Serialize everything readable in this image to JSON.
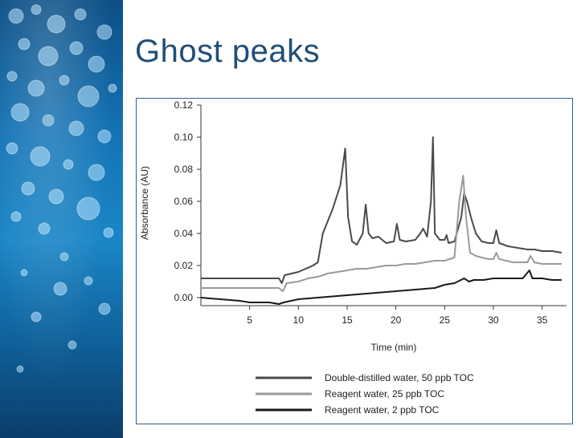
{
  "slide": {
    "title": "Ghost peaks"
  },
  "chart_data": {
    "type": "line",
    "xlabel": "Time (min)",
    "ylabel": "Absorbance (AU)",
    "xlim": [
      0,
      37.5
    ],
    "ylim": [
      -0.005,
      0.12
    ],
    "x_ticks": [
      5,
      10,
      15,
      20,
      25,
      30,
      35
    ],
    "y_ticks": [
      0.0,
      0.02,
      0.04,
      0.06,
      0.08,
      0.1,
      0.12
    ],
    "y_tick_labels": [
      "0.00",
      "0.02",
      "0.04",
      "0.06",
      "0.08",
      "0.10",
      "0.12"
    ],
    "legend_position": "bottom",
    "series": [
      {
        "name": "Double-distilled water, 50 ppb TOC",
        "color": "#4a4a4a",
        "points": [
          [
            0,
            0.012
          ],
          [
            8,
            0.012
          ],
          [
            8.3,
            0.009
          ],
          [
            8.6,
            0.014
          ],
          [
            10,
            0.016
          ],
          [
            11.5,
            0.02
          ],
          [
            12,
            0.022
          ],
          [
            12.5,
            0.04
          ],
          [
            13.5,
            0.055
          ],
          [
            14.3,
            0.07
          ],
          [
            14.8,
            0.093
          ],
          [
            15.1,
            0.05
          ],
          [
            15.5,
            0.035
          ],
          [
            16,
            0.033
          ],
          [
            16.6,
            0.04
          ],
          [
            16.9,
            0.058
          ],
          [
            17.2,
            0.04
          ],
          [
            17.6,
            0.037
          ],
          [
            18.2,
            0.038
          ],
          [
            19,
            0.034
          ],
          [
            19.8,
            0.035
          ],
          [
            20.1,
            0.046
          ],
          [
            20.4,
            0.036
          ],
          [
            21,
            0.035
          ],
          [
            22,
            0.036
          ],
          [
            22.5,
            0.04
          ],
          [
            22.8,
            0.043
          ],
          [
            23.2,
            0.038
          ],
          [
            23.6,
            0.06
          ],
          [
            23.8,
            0.1
          ],
          [
            24,
            0.04
          ],
          [
            24.5,
            0.036
          ],
          [
            25,
            0.036
          ],
          [
            25.2,
            0.039
          ],
          [
            25.4,
            0.034
          ],
          [
            26,
            0.035
          ],
          [
            26.7,
            0.05
          ],
          [
            27,
            0.065
          ],
          [
            27.3,
            0.06
          ],
          [
            27.7,
            0.05
          ],
          [
            28.2,
            0.04
          ],
          [
            28.8,
            0.035
          ],
          [
            29.5,
            0.034
          ],
          [
            30,
            0.034
          ],
          [
            30.3,
            0.042
          ],
          [
            30.6,
            0.034
          ],
          [
            31.5,
            0.032
          ],
          [
            32.5,
            0.031
          ],
          [
            33.5,
            0.03
          ],
          [
            34.2,
            0.03
          ],
          [
            35,
            0.029
          ],
          [
            36,
            0.029
          ],
          [
            37,
            0.028
          ]
        ]
      },
      {
        "name": "Reagent water, 25 ppb TOC",
        "color": "#9a9a9a",
        "points": [
          [
            0,
            0.006
          ],
          [
            8,
            0.006
          ],
          [
            8.4,
            0.004
          ],
          [
            8.8,
            0.009
          ],
          [
            10,
            0.01
          ],
          [
            11,
            0.012
          ],
          [
            12,
            0.013
          ],
          [
            13,
            0.015
          ],
          [
            14,
            0.016
          ],
          [
            15,
            0.017
          ],
          [
            16,
            0.018
          ],
          [
            17,
            0.018
          ],
          [
            18,
            0.019
          ],
          [
            19,
            0.02
          ],
          [
            20,
            0.02
          ],
          [
            21,
            0.021
          ],
          [
            22,
            0.021
          ],
          [
            23,
            0.022
          ],
          [
            24,
            0.023
          ],
          [
            25,
            0.023
          ],
          [
            26,
            0.025
          ],
          [
            26.5,
            0.06
          ],
          [
            26.9,
            0.076
          ],
          [
            27.2,
            0.05
          ],
          [
            27.6,
            0.028
          ],
          [
            28.2,
            0.026
          ],
          [
            28.8,
            0.025
          ],
          [
            29.5,
            0.024
          ],
          [
            30,
            0.024
          ],
          [
            30.3,
            0.028
          ],
          [
            30.6,
            0.024
          ],
          [
            32,
            0.022
          ],
          [
            33.5,
            0.022
          ],
          [
            33.8,
            0.026
          ],
          [
            34.2,
            0.022
          ],
          [
            35,
            0.021
          ],
          [
            36,
            0.021
          ],
          [
            37,
            0.021
          ]
        ]
      },
      {
        "name": "Reagent water, 2 ppb TOC",
        "color": "#1a1a1a",
        "points": [
          [
            0,
            0.0
          ],
          [
            4,
            -0.002
          ],
          [
            5,
            -0.003
          ],
          [
            6,
            -0.003
          ],
          [
            7,
            -0.003
          ],
          [
            8,
            -0.004
          ],
          [
            8.5,
            -0.003
          ],
          [
            10,
            -0.001
          ],
          [
            12,
            0.0
          ],
          [
            14,
            0.001
          ],
          [
            16,
            0.002
          ],
          [
            18,
            0.003
          ],
          [
            20,
            0.004
          ],
          [
            22,
            0.005
          ],
          [
            24,
            0.006
          ],
          [
            25,
            0.008
          ],
          [
            26,
            0.009
          ],
          [
            27,
            0.012
          ],
          [
            27.5,
            0.01
          ],
          [
            28,
            0.011
          ],
          [
            29,
            0.011
          ],
          [
            30,
            0.012
          ],
          [
            31,
            0.012
          ],
          [
            32,
            0.012
          ],
          [
            33,
            0.012
          ],
          [
            33.7,
            0.017
          ],
          [
            34,
            0.012
          ],
          [
            35,
            0.012
          ],
          [
            36,
            0.011
          ],
          [
            37,
            0.011
          ]
        ]
      }
    ]
  }
}
